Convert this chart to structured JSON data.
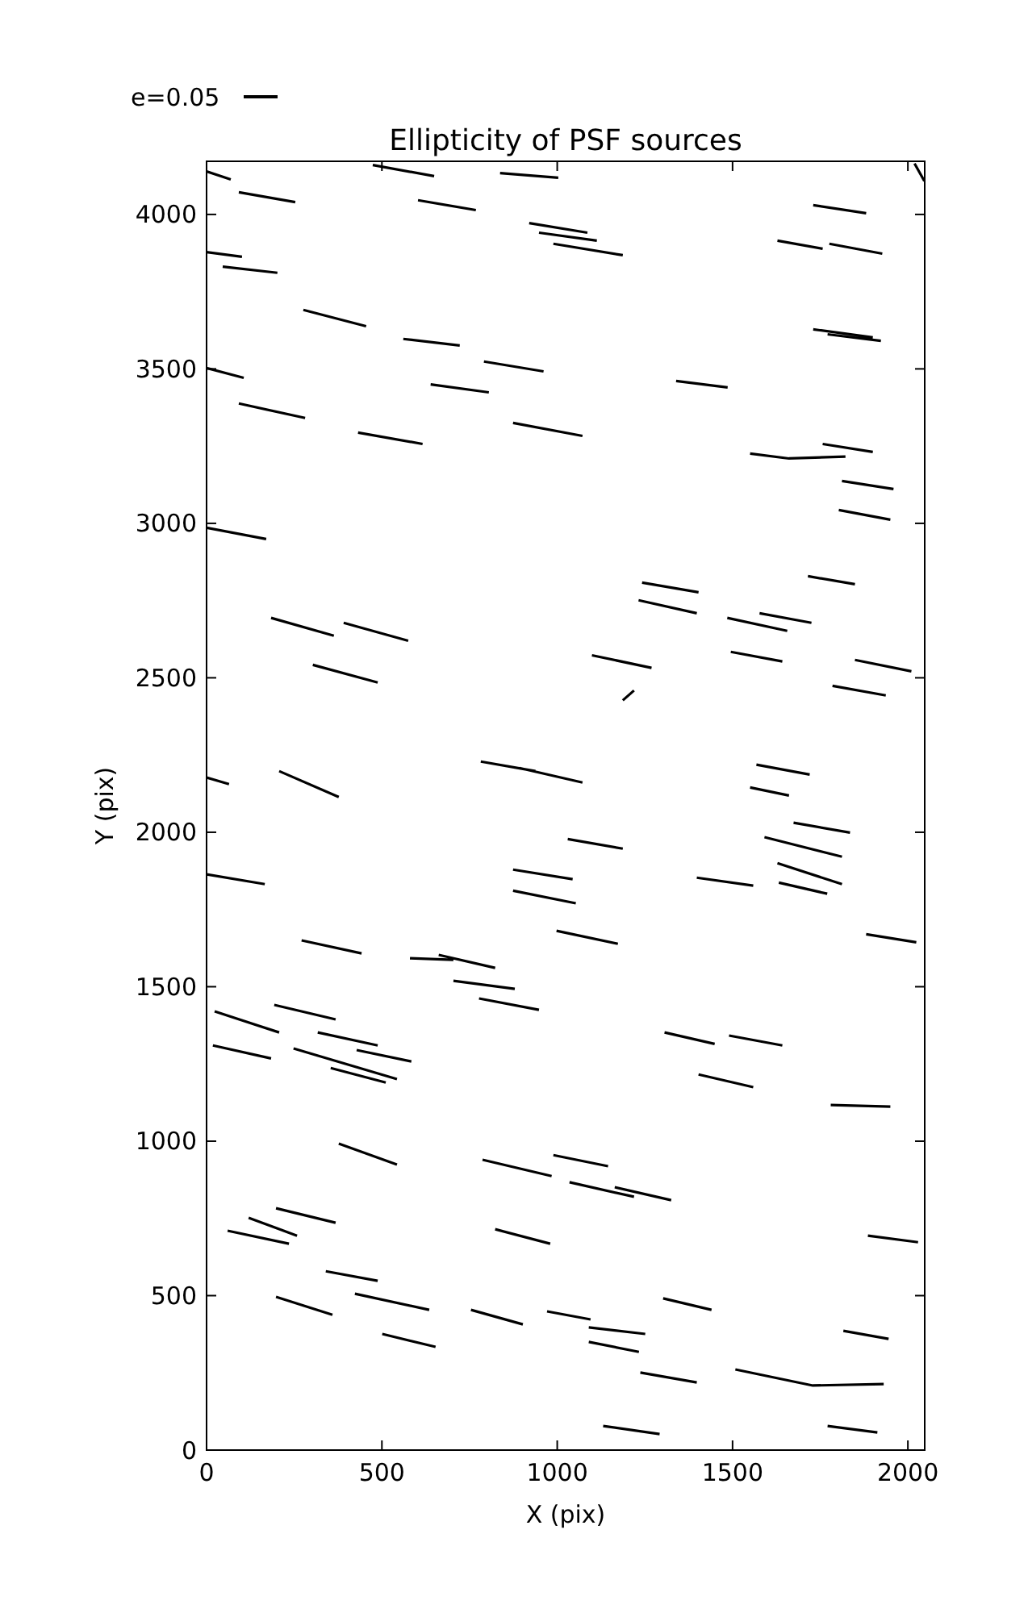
{
  "chart_data": {
    "type": "line",
    "title": "Ellipticity of PSF sources",
    "xlabel": "X (pix)",
    "ylabel": "Y (pix)",
    "xlim": [
      0,
      2048
    ],
    "ylim": [
      0,
      4172
    ],
    "xticks": [
      0,
      500,
      1000,
      1500,
      2000
    ],
    "yticks": [
      0,
      500,
      1000,
      1500,
      2000,
      2500,
      3000,
      3500,
      4000
    ],
    "grid": false,
    "legend": "top left",
    "marker": "none",
    "line_style": "solid",
    "series": [
      {
        "name": "e=0.05",
        "color": "#000000",
        "x": [
          0,
          69,
          null,
          92,
          253,
          null,
          474,
          649,
          null,
          837,
          1003,
          null,
          603,
          768,
          null,
          920,
          1086,
          null,
          948,
          1113,
          null,
          989,
          1187,
          null,
          1730,
          1881,
          null,
          1628,
          1757,
          null,
          1776,
          1927,
          null,
          0,
          101,
          null,
          46,
          202,
          null,
          2019,
          2047,
          null,
          276,
          455,
          null,
          561,
          722,
          null,
          791,
          961,
          null,
          0,
          106,
          null,
          639,
          805,
          null,
          92,
          281,
          null,
          1339,
          1486,
          null,
          1730,
          1900,
          null,
          1771,
          1923,
          null,
          432,
          616,
          null,
          874,
          1072,
          null,
          1550,
          1661,
          1822,
          null,
          1757,
          1900,
          null,
          1812,
          1959,
          null,
          1803,
          1950,
          null,
          0,
          170,
          null,
          1715,
          1849,
          null,
          1242,
          1403,
          null,
          1232,
          1398,
          null,
          184,
          363,
          null,
          391,
          575,
          null,
          1485,
          1656,
          null,
          1577,
          1725,
          null,
          303,
          488,
          null,
          1099,
          1269,
          null,
          1187,
          1219,
          null,
          1495,
          1642,
          null,
          1849,
          2010,
          null,
          1785,
          1937,
          null,
          0,
          64,
          null,
          207,
          377,
          null,
          782,
          938,
          null,
          892,
          1072,
          null,
          1568,
          1720,
          null,
          1550,
          1661,
          null,
          1674,
          1835,
          null,
          1591,
          1812,
          null,
          1628,
          1812,
          null,
          1632,
          1770,
          null,
          1398,
          1559,
          null,
          1030,
          1187,
          null,
          874,
          1044,
          null,
          874,
          1053,
          null,
          0,
          166,
          null,
          998,
          1173,
          null,
          1881,
          2024,
          null,
          271,
          442,
          null,
          580,
          704,
          null,
          662,
          823,
          null,
          704,
          879,
          null,
          777,
          948,
          null,
          23,
          207,
          null,
          193,
          368,
          null,
          18,
          184,
          null,
          317,
          488,
          null,
          428,
          584,
          null,
          248,
          543,
          null,
          354,
          511,
          null,
          1306,
          1449,
          null,
          1490,
          1642,
          null,
          1403,
          1559,
          null,
          1780,
          1950,
          null,
          377,
          543,
          null,
          787,
          984,
          null,
          989,
          1145,
          null,
          1035,
          1219,
          null,
          1164,
          1325,
          null,
          198,
          368,
          null,
          120,
          258,
          null,
          60,
          235,
          null,
          823,
          980,
          null,
          1886,
          2029,
          null,
          340,
          488,
          null,
          198,
          359,
          null,
          423,
          635,
          null,
          754,
          902,
          null,
          971,
          1095,
          null,
          1090,
          1251,
          null,
          1090,
          1233,
          null,
          1302,
          1440,
          null,
          501,
          653,
          null,
          1237,
          1398,
          null,
          1508,
          1729,
          1931,
          null,
          1816,
          1945,
          null,
          1131,
          1292,
          null,
          1771,
          1913
        ],
        "values": [
          4139,
          4113,
          null,
          4072,
          4040,
          null,
          4160,
          4124,
          null,
          4134,
          4119,
          null,
          4046,
          4014,
          null,
          3972,
          3941,
          null,
          3941,
          3915,
          null,
          3905,
          3868,
          null,
          4030,
          4004,
          null,
          3915,
          3889,
          null,
          3905,
          3873,
          null,
          3878,
          3863,
          null,
          3831,
          3811,
          null,
          4165,
          4108,
          null,
          3691,
          3638,
          null,
          3597,
          3576,
          null,
          3524,
          3492,
          null,
          3503,
          3471,
          null,
          3450,
          3424,
          null,
          3388,
          3341,
          null,
          3461,
          3440,
          null,
          3628,
          3602,
          null,
          3612,
          3591,
          null,
          3294,
          3257,
          null,
          3325,
          3283,
          null,
          3226,
          3210,
          3216,
          null,
          3257,
          3231,
          null,
          3137,
          3111,
          null,
          3043,
          3012,
          null,
          2986,
          2949,
          null,
          2829,
          2803,
          null,
          2808,
          2777,
          null,
          2751,
          2709,
          null,
          2694,
          2636,
          null,
          2678,
          2620,
          null,
          2694,
          2652,
          null,
          2709,
          2678,
          null,
          2542,
          2485,
          null,
          2573,
          2532,
          null,
          2427,
          2459,
          null,
          2584,
          2553,
          null,
          2558,
          2521,
          null,
          2474,
          2443,
          null,
          2177,
          2156,
          null,
          2198,
          2114,
          null,
          2229,
          2198,
          null,
          2208,
          2161,
          null,
          2219,
          2187,
          null,
          2145,
          2119,
          null,
          2031,
          1999,
          null,
          1984,
          1921,
          null,
          1900,
          1832,
          null,
          1837,
          1801,
          null,
          1853,
          1827,
          null,
          1978,
          1947,
          null,
          1879,
          1848,
          null,
          1811,
          1770,
          null,
          1864,
          1832,
          null,
          1681,
          1639,
          null,
          1670,
          1644,
          null,
          1650,
          1608,
          null,
          1592,
          1587,
          null,
          1603,
          1561,
          null,
          1519,
          1493,
          null,
          1462,
          1425,
          null,
          1420,
          1352,
          null,
          1441,
          1394,
          null,
          1310,
          1268,
          null,
          1352,
          1310,
          null,
          1295,
          1258,
          null,
          1300,
          1201,
          null,
          1237,
          1190,
          null,
          1352,
          1315,
          null,
          1342,
          1310,
          null,
          1216,
          1175,
          null,
          1117,
          1112,
          null,
          992,
          924,
          null,
          940,
          887,
          null,
          955,
          919,
          null,
          867,
          820,
          null,
          851,
          809,
          null,
          783,
          736,
          null,
          752,
          694,
          null,
          710,
          668,
          null,
          715,
          668,
          null,
          694,
          673,
          null,
          579,
          548,
          null,
          496,
          438,
          null,
          506,
          454,
          null,
          454,
          407,
          null,
          449,
          423,
          null,
          397,
          376,
          null,
          350,
          318,
          null,
          491,
          454,
          null,
          376,
          334,
          null,
          251,
          219,
          null,
          261,
          209,
          214,
          null,
          386,
          360,
          null,
          78,
          52,
          null,
          78,
          57
        ]
      }
    ]
  }
}
